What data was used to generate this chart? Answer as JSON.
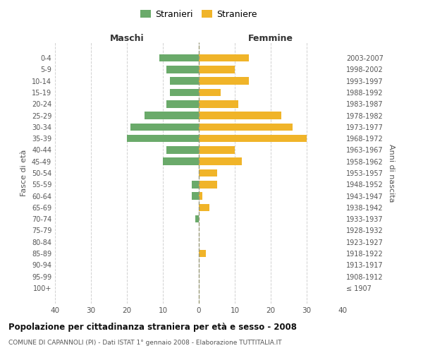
{
  "age_groups": [
    "100+",
    "95-99",
    "90-94",
    "85-89",
    "80-84",
    "75-79",
    "70-74",
    "65-69",
    "60-64",
    "55-59",
    "50-54",
    "45-49",
    "40-44",
    "35-39",
    "30-34",
    "25-29",
    "20-24",
    "15-19",
    "10-14",
    "5-9",
    "0-4"
  ],
  "birth_years": [
    "≤ 1907",
    "1908-1912",
    "1913-1917",
    "1918-1922",
    "1923-1927",
    "1928-1932",
    "1933-1937",
    "1938-1942",
    "1943-1947",
    "1948-1952",
    "1953-1957",
    "1958-1962",
    "1963-1967",
    "1968-1972",
    "1973-1977",
    "1978-1982",
    "1983-1987",
    "1988-1992",
    "1993-1997",
    "1998-2002",
    "2003-2007"
  ],
  "males": [
    0,
    0,
    0,
    0,
    0,
    0,
    1,
    0,
    2,
    2,
    0,
    10,
    9,
    20,
    19,
    15,
    9,
    8,
    8,
    9,
    11
  ],
  "females": [
    0,
    0,
    0,
    2,
    0,
    0,
    0,
    3,
    1,
    5,
    5,
    12,
    10,
    30,
    26,
    23,
    11,
    6,
    14,
    10,
    14
  ],
  "male_color": "#6aaa6a",
  "female_color": "#f0b429",
  "title": "Popolazione per cittadinanza straniera per età e sesso - 2008",
  "subtitle": "COMUNE DI CAPANNOLI (PI) - Dati ISTAT 1° gennaio 2008 - Elaborazione TUTTITALIA.IT",
  "xlabel_left": "Maschi",
  "xlabel_right": "Femmine",
  "ylabel_left": "Fasce di età",
  "ylabel_right": "Anni di nascita",
  "legend_males": "Stranieri",
  "legend_females": "Straniere",
  "xlim": 40,
  "background_color": "#ffffff",
  "grid_color": "#cccccc"
}
